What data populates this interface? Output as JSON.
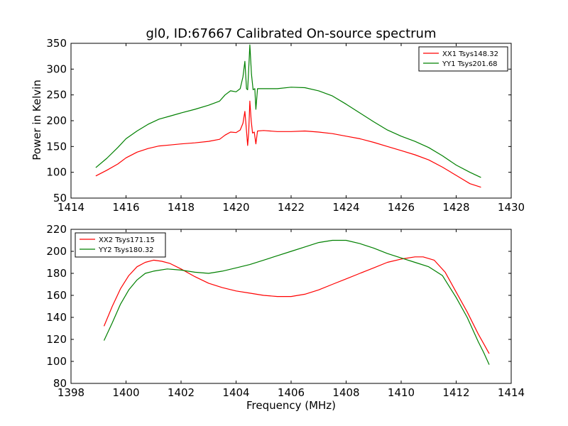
{
  "chart_data": [
    {
      "type": "line",
      "title": "gl0, ID:67667 Calibrated On-source spectrum",
      "xlabel": "",
      "ylabel": "Power in Kelvin",
      "xlim": [
        1414,
        1430
      ],
      "ylim": [
        50,
        350
      ],
      "xticks": [
        1414,
        1416,
        1418,
        1420,
        1422,
        1424,
        1426,
        1428,
        1430
      ],
      "yticks": [
        50,
        100,
        150,
        200,
        250,
        300,
        350
      ],
      "legend_position": "top-right",
      "grid": false,
      "series": [
        {
          "name": "XX1 Tsys148.32",
          "color": "#ff0000",
          "points": [
            [
              1414.9,
              93
            ],
            [
              1415.3,
              104
            ],
            [
              1415.7,
              116
            ],
            [
              1416.0,
              128
            ],
            [
              1416.4,
              139
            ],
            [
              1416.8,
              146
            ],
            [
              1417.2,
              151
            ],
            [
              1417.6,
              153
            ],
            [
              1418.0,
              155
            ],
            [
              1418.5,
              157
            ],
            [
              1419.0,
              160
            ],
            [
              1419.4,
              164
            ],
            [
              1419.6,
              172
            ],
            [
              1419.8,
              178
            ],
            [
              1420.0,
              177
            ],
            [
              1420.15,
              182
            ],
            [
              1420.25,
              195
            ],
            [
              1420.32,
              218
            ],
            [
              1420.38,
              180
            ],
            [
              1420.42,
              152
            ],
            [
              1420.46,
              178
            ],
            [
              1420.5,
              238
            ],
            [
              1420.55,
              200
            ],
            [
              1420.6,
              176
            ],
            [
              1420.66,
              178
            ],
            [
              1420.72,
              155
            ],
            [
              1420.78,
              180
            ],
            [
              1421.0,
              181
            ],
            [
              1421.5,
              179
            ],
            [
              1422.0,
              179
            ],
            [
              1422.5,
              180
            ],
            [
              1423.0,
              178
            ],
            [
              1423.5,
              175
            ],
            [
              1424.0,
              170
            ],
            [
              1424.5,
              165
            ],
            [
              1425.0,
              158
            ],
            [
              1425.5,
              150
            ],
            [
              1426.0,
              142
            ],
            [
              1426.5,
              134
            ],
            [
              1427.0,
              124
            ],
            [
              1427.5,
              110
            ],
            [
              1428.0,
              94
            ],
            [
              1428.5,
              78
            ],
            [
              1428.9,
              71
            ]
          ]
        },
        {
          "name": "YY1 Tsys201.68",
          "color": "#008000",
          "points": [
            [
              1414.9,
              109
            ],
            [
              1415.3,
              127
            ],
            [
              1415.7,
              148
            ],
            [
              1416.0,
              165
            ],
            [
              1416.4,
              180
            ],
            [
              1416.8,
              193
            ],
            [
              1417.2,
              203
            ],
            [
              1417.6,
              209
            ],
            [
              1418.0,
              215
            ],
            [
              1418.5,
              222
            ],
            [
              1419.0,
              230
            ],
            [
              1419.4,
              238
            ],
            [
              1419.6,
              250
            ],
            [
              1419.8,
              258
            ],
            [
              1420.0,
              256
            ],
            [
              1420.15,
              262
            ],
            [
              1420.25,
              285
            ],
            [
              1420.32,
              315
            ],
            [
              1420.38,
              262
            ],
            [
              1420.42,
              260
            ],
            [
              1420.46,
              300
            ],
            [
              1420.5,
              347
            ],
            [
              1420.56,
              290
            ],
            [
              1420.62,
              260
            ],
            [
              1420.68,
              262
            ],
            [
              1420.72,
              222
            ],
            [
              1420.78,
              262
            ],
            [
              1421.0,
              262
            ],
            [
              1421.5,
              262
            ],
            [
              1422.0,
              265
            ],
            [
              1422.5,
              264
            ],
            [
              1423.0,
              258
            ],
            [
              1423.5,
              248
            ],
            [
              1424.0,
              232
            ],
            [
              1424.5,
              215
            ],
            [
              1425.0,
              198
            ],
            [
              1425.5,
              182
            ],
            [
              1426.0,
              170
            ],
            [
              1426.5,
              160
            ],
            [
              1427.0,
              148
            ],
            [
              1427.5,
              132
            ],
            [
              1428.0,
              114
            ],
            [
              1428.5,
              100
            ],
            [
              1428.9,
              90
            ]
          ]
        }
      ]
    },
    {
      "type": "line",
      "title": "",
      "xlabel": "Frequency (MHz)",
      "ylabel": "",
      "xlim": [
        1398,
        1414
      ],
      "ylim": [
        80,
        220
      ],
      "xticks": [
        1398,
        1400,
        1402,
        1404,
        1406,
        1408,
        1410,
        1412,
        1414
      ],
      "yticks": [
        80,
        100,
        120,
        140,
        160,
        180,
        200,
        220
      ],
      "legend_position": "top-left",
      "grid": false,
      "series": [
        {
          "name": "XX2 Tsys171.15",
          "color": "#ff0000",
          "points": [
            [
              1399.2,
              132
            ],
            [
              1399.5,
              150
            ],
            [
              1399.8,
              166
            ],
            [
              1400.1,
              178
            ],
            [
              1400.4,
              186
            ],
            [
              1400.7,
              190
            ],
            [
              1401.0,
              192
            ],
            [
              1401.3,
              191
            ],
            [
              1401.6,
              189
            ],
            [
              1402.0,
              184
            ],
            [
              1402.5,
              177
            ],
            [
              1403.0,
              171
            ],
            [
              1403.5,
              167
            ],
            [
              1404.0,
              164
            ],
            [
              1404.5,
              162
            ],
            [
              1405.0,
              160
            ],
            [
              1405.5,
              159
            ],
            [
              1406.0,
              159
            ],
            [
              1406.5,
              161
            ],
            [
              1407.0,
              165
            ],
            [
              1407.5,
              170
            ],
            [
              1408.0,
              175
            ],
            [
              1408.5,
              180
            ],
            [
              1409.0,
              185
            ],
            [
              1409.5,
              190
            ],
            [
              1410.0,
              193
            ],
            [
              1410.5,
              195
            ],
            [
              1410.8,
              195
            ],
            [
              1411.2,
              192
            ],
            [
              1411.6,
              181
            ],
            [
              1412.0,
              163
            ],
            [
              1412.4,
              145
            ],
            [
              1412.8,
              125
            ],
            [
              1413.0,
              116
            ],
            [
              1413.2,
              107
            ]
          ]
        },
        {
          "name": "YY2 Tsys180.32",
          "color": "#008000",
          "points": [
            [
              1399.2,
              119
            ],
            [
              1399.5,
              135
            ],
            [
              1399.8,
              152
            ],
            [
              1400.1,
              165
            ],
            [
              1400.4,
              174
            ],
            [
              1400.7,
              180
            ],
            [
              1401.0,
              182
            ],
            [
              1401.5,
              184
            ],
            [
              1402.0,
              183
            ],
            [
              1402.5,
              181
            ],
            [
              1403.0,
              180
            ],
            [
              1403.5,
              182
            ],
            [
              1404.0,
              185
            ],
            [
              1404.5,
              188
            ],
            [
              1405.0,
              192
            ],
            [
              1405.5,
              196
            ],
            [
              1406.0,
              200
            ],
            [
              1406.5,
              204
            ],
            [
              1407.0,
              208
            ],
            [
              1407.5,
              210
            ],
            [
              1408.0,
              210
            ],
            [
              1408.5,
              207
            ],
            [
              1409.0,
              203
            ],
            [
              1409.5,
              198
            ],
            [
              1410.0,
              194
            ],
            [
              1410.5,
              190
            ],
            [
              1411.0,
              186
            ],
            [
              1411.5,
              178
            ],
            [
              1412.0,
              158
            ],
            [
              1412.4,
              140
            ],
            [
              1412.8,
              118
            ],
            [
              1413.0,
              108
            ],
            [
              1413.2,
              97
            ]
          ]
        }
      ]
    }
  ]
}
